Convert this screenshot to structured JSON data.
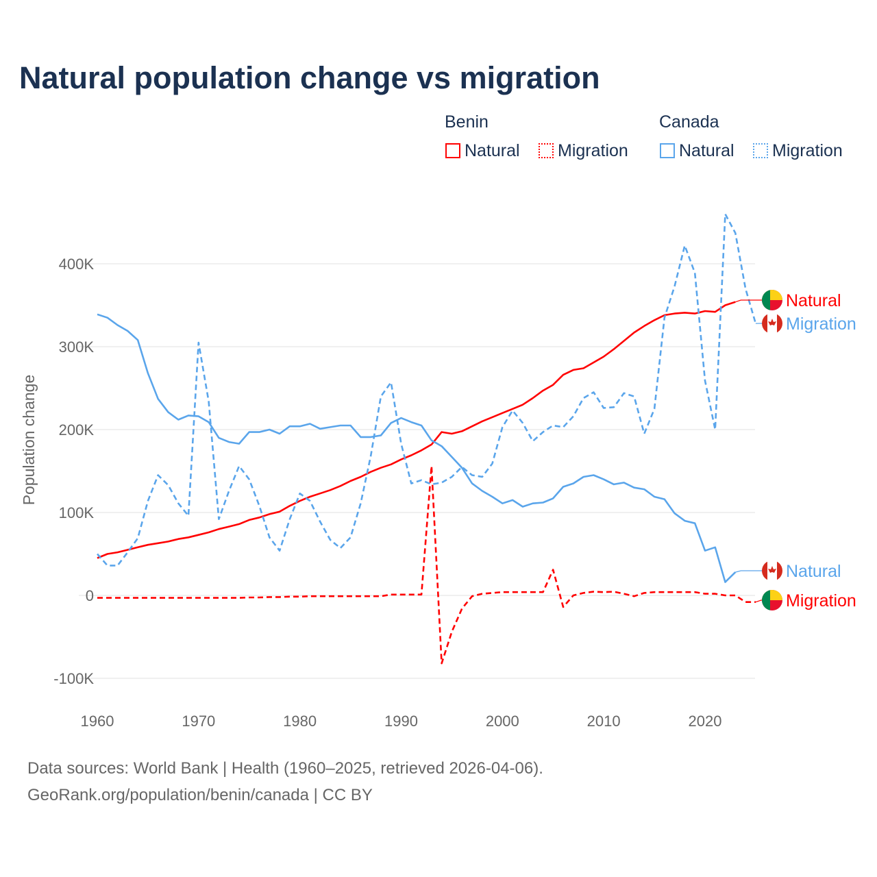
{
  "title": "Natural population change vs migration",
  "legend": {
    "groups": [
      {
        "name": "Benin",
        "items": [
          {
            "label": "Natural",
            "style": "solid",
            "color": "#ff0000"
          },
          {
            "label": "Migration",
            "style": "dotted",
            "color": "#ff0000"
          }
        ]
      },
      {
        "name": "Canada",
        "items": [
          {
            "label": "Natural",
            "style": "solid",
            "color": "#5aa5eb"
          },
          {
            "label": "Migration",
            "style": "dotted",
            "color": "#5aa5eb"
          }
        ]
      }
    ]
  },
  "end_labels": [
    {
      "label": "Natural",
      "country": "Benin",
      "color": "#ff0000"
    },
    {
      "label": "Migration",
      "country": "Canada",
      "color": "#5aa5eb"
    },
    {
      "label": "Natural",
      "country": "Canada",
      "color": "#5aa5eb"
    },
    {
      "label": "Migration",
      "country": "Benin",
      "color": "#ff0000"
    }
  ],
  "footer": {
    "line1": "Data sources: World Bank | Health (1960–2025, retrieved 2026-04-06).",
    "line2": "GeoRank.org/population/benin/canada | CC BY"
  },
  "chart_data": {
    "type": "line",
    "title": "Natural population change vs migration",
    "xlabel": "",
    "ylabel": "Population change",
    "xlim": [
      1960,
      2025
    ],
    "ylim": [
      -100000,
      400000
    ],
    "x_ticks": [
      1960,
      1970,
      1980,
      1990,
      2000,
      2010,
      2020
    ],
    "y_ticks": [
      {
        "v": -100000,
        "label": "-100K"
      },
      {
        "v": 0,
        "label": "0"
      },
      {
        "v": 100000,
        "label": "100K"
      },
      {
        "v": 200000,
        "label": "200K"
      },
      {
        "v": 300000,
        "label": "300K"
      },
      {
        "v": 400000,
        "label": "400K"
      }
    ],
    "grid": true,
    "start_year": 1960,
    "series": [
      {
        "name": "Benin Natural",
        "color": "#ff0000",
        "dash": false,
        "unit": "K",
        "values": [
          45,
          50,
          52,
          55,
          58,
          61,
          63,
          65,
          68,
          70,
          73,
          76,
          80,
          83,
          86,
          91,
          94,
          98,
          101,
          108,
          114,
          119,
          123,
          127,
          132,
          138,
          143,
          149,
          154,
          158,
          164,
          169,
          175,
          182,
          197,
          195,
          198,
          204,
          210,
          215,
          220,
          225,
          230,
          238,
          247,
          254,
          266,
          272,
          274,
          281,
          288,
          297,
          307,
          317,
          325,
          332,
          338,
          340,
          341,
          340,
          343,
          342,
          350,
          354
        ]
      },
      {
        "name": "Benin Migration",
        "color": "#ff0000",
        "dash": true,
        "unit": "K",
        "values": [
          -3,
          -3,
          -3,
          -3,
          -3,
          -3,
          -3,
          -3,
          -3,
          -3,
          -3,
          -3,
          -3,
          -3,
          -3,
          -2.5,
          -2.5,
          -2,
          -2,
          -1.5,
          -1.5,
          -1,
          -1,
          -1,
          -1,
          -1,
          -1,
          -1,
          -1,
          1,
          1,
          1,
          1,
          156,
          -82,
          -44,
          -16,
          -1,
          2,
          3,
          4,
          4,
          4,
          4,
          4,
          31,
          -14,
          0,
          3,
          4.5,
          4,
          4.5,
          2,
          -1,
          3,
          4,
          4,
          4,
          4,
          4,
          2,
          2,
          0,
          0,
          -8,
          -8
        ]
      },
      {
        "name": "Canada Natural",
        "color": "#5aa5eb",
        "dash": false,
        "unit": "K",
        "values": [
          339,
          335,
          326,
          319,
          308,
          268,
          237,
          221,
          212,
          217,
          216,
          209,
          190,
          185,
          183,
          197,
          197,
          200,
          195,
          204,
          204,
          207,
          201,
          203,
          205,
          205,
          191,
          191,
          193,
          208,
          214,
          209,
          205,
          187,
          180,
          167,
          154,
          135,
          126,
          119,
          111,
          115,
          107,
          111,
          112,
          117,
          131,
          135,
          143,
          145,
          140,
          134,
          136,
          130,
          128,
          119,
          116,
          99,
          90,
          87,
          54,
          58,
          16,
          28
        ]
      },
      {
        "name": "Canada Migration",
        "color": "#5aa5eb",
        "dash": true,
        "unit": "K",
        "values": [
          50,
          36,
          36,
          52,
          69,
          114,
          145,
          133,
          111,
          96,
          305,
          234,
          92,
          126,
          156,
          140,
          108,
          70,
          54,
          92,
          123,
          114,
          89,
          67,
          57,
          70,
          111,
          168,
          240,
          257,
          183,
          135,
          139,
          134,
          136,
          143,
          155,
          145,
          143,
          159,
          203,
          223,
          208,
          186,
          197,
          205,
          203,
          216,
          238,
          245,
          226,
          227,
          244,
          240,
          195,
          225,
          335,
          373,
          422,
          389,
          259,
          200,
          460,
          437,
          370,
          328
        ]
      }
    ]
  }
}
